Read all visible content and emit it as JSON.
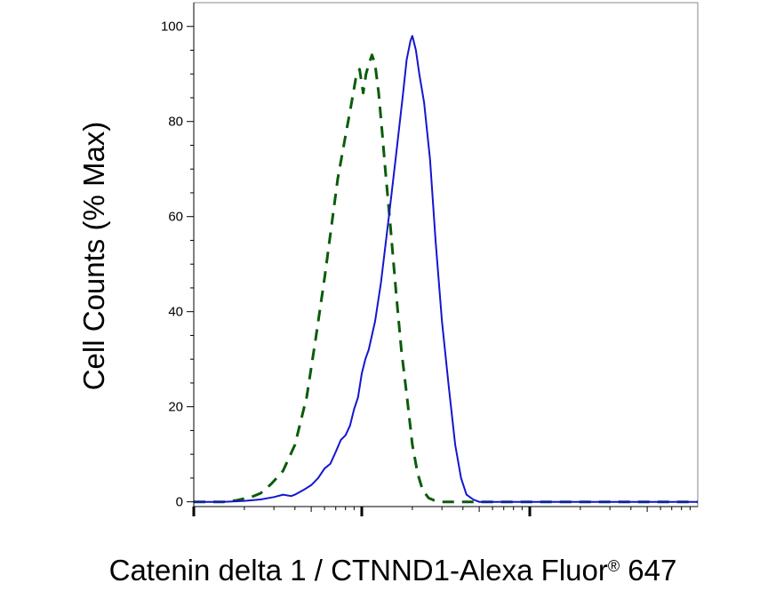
{
  "chart_data": {
    "type": "line",
    "title": "",
    "xlabel": "Catenin delta 1 / CTNND1-Alexa Fluor",
    "xlabel_superscript": "®",
    "xlabel_suffix": " 647",
    "ylabel": "Cell Counts (% Max)",
    "xscale": "log",
    "xlim": [
      0.1,
      100
    ],
    "ylim": [
      -1,
      105
    ],
    "y_ticks": [
      0,
      20,
      40,
      60,
      80,
      100
    ],
    "x_major_ticks": [
      1,
      10
    ],
    "grid": false,
    "series": [
      {
        "style": "dashed",
        "color": "#0a5c0a",
        "x": [
          0.1,
          0.12,
          0.15,
          0.18,
          0.22,
          0.25,
          0.29,
          0.34,
          0.4,
          0.47,
          0.53,
          0.6,
          0.66,
          0.72,
          0.8,
          0.86,
          0.92,
          0.97,
          1.02,
          1.06,
          1.1,
          1.15,
          1.2,
          1.26,
          1.32,
          1.38,
          1.48,
          1.6,
          1.72,
          1.86,
          2.0,
          2.15,
          2.3,
          2.5,
          2.7,
          3.0,
          3.3,
          3.6,
          4.0,
          10.0,
          100.0
        ],
        "y": [
          0,
          0,
          0,
          0.3,
          1,
          1.8,
          3.8,
          6.5,
          12,
          22,
          34,
          47,
          58,
          68,
          77,
          83,
          89,
          91,
          86,
          90,
          92,
          94,
          92,
          86,
          78,
          70,
          58,
          44,
          32,
          22,
          12,
          6,
          2.5,
          0.8,
          0.3,
          0,
          0,
          0,
          0,
          0,
          0
        ]
      },
      {
        "style": "solid",
        "color": "#1515d0",
        "x": [
          0.1,
          0.15,
          0.2,
          0.25,
          0.3,
          0.34,
          0.38,
          0.4,
          0.45,
          0.5,
          0.55,
          0.6,
          0.65,
          0.7,
          0.75,
          0.8,
          0.85,
          0.9,
          0.95,
          1.0,
          1.05,
          1.1,
          1.2,
          1.3,
          1.45,
          1.6,
          1.75,
          1.85,
          1.95,
          2.0,
          2.1,
          2.2,
          2.35,
          2.55,
          2.75,
          3.0,
          3.3,
          3.6,
          3.9,
          4.2,
          4.6,
          5.0,
          5.5,
          6.0,
          7.0,
          10.0,
          100.0
        ],
        "y": [
          0,
          0,
          0.2,
          0.5,
          1,
          1.5,
          1.2,
          1.5,
          2.5,
          3.5,
          5,
          7,
          8,
          10.5,
          13,
          14,
          16,
          19.5,
          22,
          27,
          30,
          32,
          38,
          46,
          60,
          73,
          85,
          93,
          97,
          98,
          95,
          90,
          84,
          72,
          55,
          38,
          24,
          12,
          5,
          1.5,
          0.5,
          0,
          0,
          0,
          0,
          0,
          0
        ]
      }
    ]
  }
}
